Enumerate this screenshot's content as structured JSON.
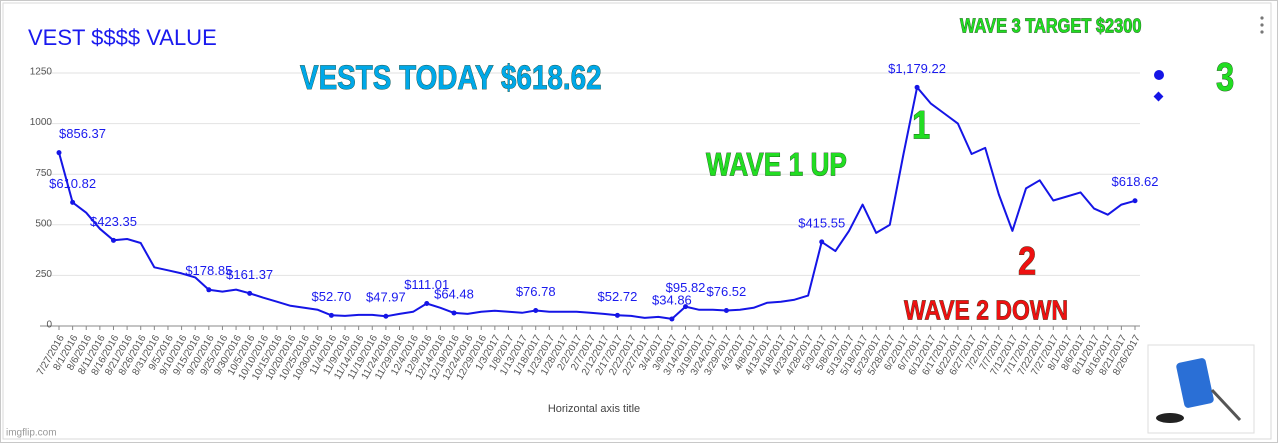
{
  "chart_data": {
    "type": "line",
    "title": "VEST $$$$ VALUE",
    "x_label": "Horizontal axis title",
    "color": "#1515e6",
    "ylim": [
      0,
      1250
    ],
    "yticks": [
      0,
      250,
      500,
      750,
      1000,
      1250
    ],
    "grid": true,
    "categories": [
      "7/27/2016",
      "8/1/2016",
      "8/6/2016",
      "8/11/2016",
      "8/16/2016",
      "8/21/2016",
      "8/26/2016",
      "8/31/2016",
      "9/5/2016",
      "9/10/2016",
      "9/15/2016",
      "9/20/2016",
      "9/25/2016",
      "9/30/2016",
      "10/5/2016",
      "10/10/2016",
      "10/15/2016",
      "10/20/2016",
      "10/25/2016",
      "10/30/2016",
      "11/4/2016",
      "11/9/2016",
      "11/14/2016",
      "11/19/2016",
      "11/24/2016",
      "11/29/2016",
      "12/4/2016",
      "12/9/2016",
      "12/14/2016",
      "12/19/2016",
      "12/24/2016",
      "12/29/2016",
      "1/3/2017",
      "1/8/2017",
      "1/13/2017",
      "1/18/2017",
      "1/23/2017",
      "1/28/2017",
      "2/2/2017",
      "2/7/2017",
      "2/12/2017",
      "2/17/2017",
      "2/22/2017",
      "2/27/2017",
      "3/4/2017",
      "3/9/2017",
      "3/14/2017",
      "3/19/2017",
      "3/24/2017",
      "3/29/2017",
      "4/3/2017",
      "4/8/2017",
      "4/13/2017",
      "4/18/2017",
      "4/23/2017",
      "4/28/2017",
      "5/3/2017",
      "5/8/2017",
      "5/13/2017",
      "5/18/2017",
      "5/23/2017",
      "5/28/2017",
      "6/2/2017",
      "6/7/2017",
      "6/12/2017",
      "6/17/2017",
      "6/22/2017",
      "6/27/2017",
      "7/2/2017",
      "7/7/2017",
      "7/12/2017",
      "7/17/2017",
      "7/22/2017",
      "7/27/2017",
      "8/1/2017",
      "8/6/2017",
      "8/11/2017",
      "8/16/2017",
      "8/21/2017",
      "8/26/2017"
    ],
    "values": [
      856.37,
      610.82,
      560,
      480,
      423.35,
      430,
      410,
      290,
      275,
      260,
      240,
      178.85,
      170,
      180,
      161.37,
      140,
      120,
      100,
      90,
      80,
      52.7,
      50,
      55,
      55,
      47.97,
      60,
      70,
      111.01,
      90,
      64.48,
      60,
      70,
      75,
      70,
      65,
      76.78,
      70,
      70,
      70,
      65,
      60,
      52.72,
      50,
      40,
      45,
      34.86,
      95.82,
      80,
      80,
      76.52,
      80,
      90,
      115,
      120,
      130,
      150,
      415.55,
      370,
      470,
      600,
      460,
      500,
      850,
      1179.22,
      1100,
      1050,
      1000,
      850,
      880,
      650,
      470,
      680,
      720,
      620,
      640,
      660,
      580,
      550,
      600,
      618.62
    ],
    "value_labels": [
      "$856.37",
      "$610.82",
      null,
      null,
      "$423.35",
      null,
      null,
      null,
      null,
      null,
      null,
      "$178.85",
      null,
      null,
      "$161.37",
      null,
      null,
      null,
      null,
      null,
      "$52.70",
      null,
      null,
      null,
      "$47.97",
      null,
      null,
      "$111.01",
      null,
      "$64.48",
      null,
      null,
      null,
      null,
      null,
      "$76.78",
      null,
      null,
      null,
      null,
      null,
      "$52.72",
      null,
      null,
      null,
      "$34.86",
      "$95.82",
      null,
      null,
      "$76.52",
      null,
      null,
      null,
      null,
      null,
      null,
      "$415.55",
      null,
      null,
      null,
      null,
      null,
      null,
      "$1,179.22",
      null,
      null,
      null,
      null,
      null,
      null,
      null,
      null,
      null,
      null,
      null,
      null,
      null,
      null,
      null,
      "$618.62"
    ],
    "annotations": [
      {
        "text": "VESTS TODAY  $618.62",
        "color": "#00a8e8"
      },
      {
        "text": "WAVE 3 TARGET   $2300",
        "color": "#22dd22"
      },
      {
        "text": "WAVE 1 UP",
        "color": "#22dd22"
      },
      {
        "text": "1",
        "color": "#22dd22"
      },
      {
        "text": "2",
        "color": "#ee1111"
      },
      {
        "text": "WAVE  2  DOWN",
        "color": "#ee1111"
      },
      {
        "text": "3",
        "color": "#22dd22"
      }
    ],
    "watermark": "imgflip.com"
  }
}
